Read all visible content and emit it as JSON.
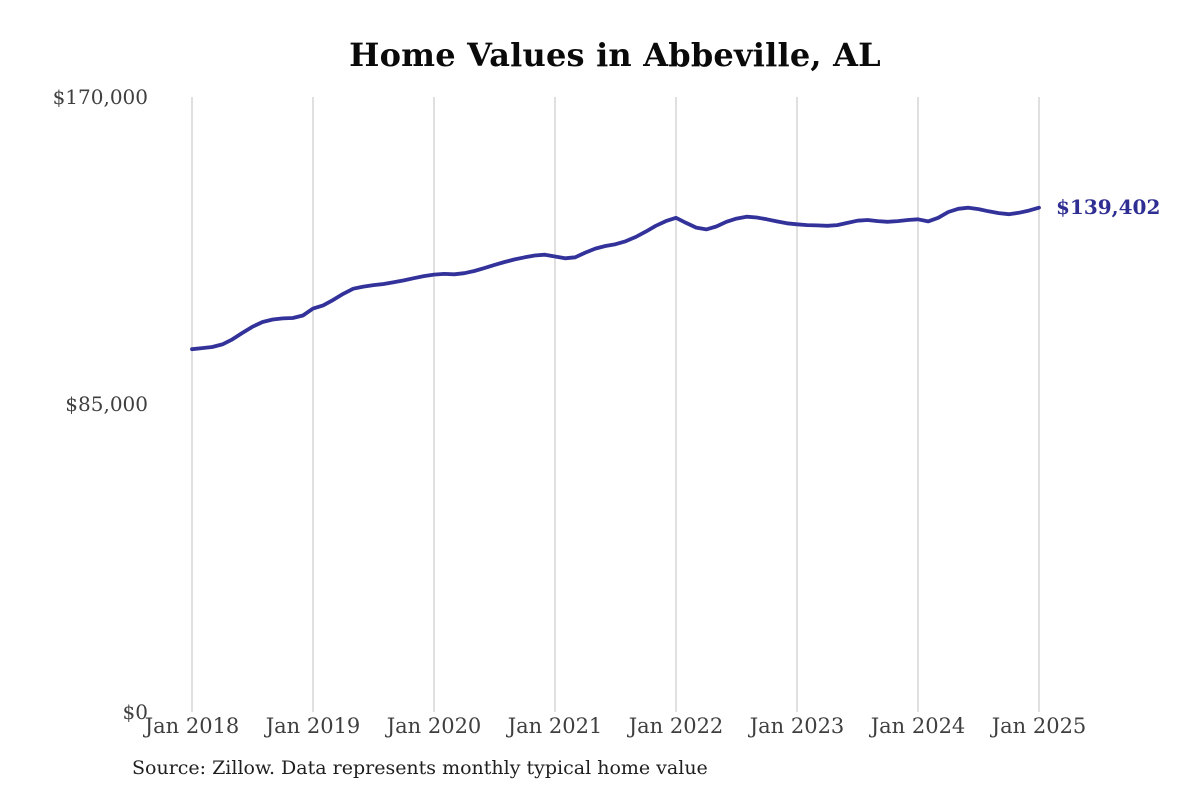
{
  "chart": {
    "source_note": "Source: Zillow. Data represents monthly typical home value"
  },
  "chart_data": {
    "type": "line",
    "title": "Home Values in Abbeville, AL",
    "xlabel": "",
    "ylabel": "",
    "ylim": [
      0,
      170000
    ],
    "grid": "vertical-only",
    "legend": "none",
    "x_interval": "monthly",
    "x_range": [
      "Jan 2018",
      "Jan 2025"
    ],
    "y_ticks": [
      {
        "value": 0,
        "label": "$0"
      },
      {
        "value": 85000,
        "label": "$85,000"
      },
      {
        "value": 170000,
        "label": "$170,000"
      }
    ],
    "x_ticks": [
      "Jan 2018",
      "Jan 2019",
      "Jan 2020",
      "Jan 2021",
      "Jan 2022",
      "Jan 2023",
      "Jan 2024",
      "Jan 2025"
    ],
    "series": [
      {
        "name": "Monthly typical home value",
        "values": [
          100300,
          100600,
          100900,
          101600,
          103000,
          104800,
          106500,
          107800,
          108500,
          108800,
          108900,
          109600,
          111500,
          112400,
          113900,
          115600,
          117000,
          117600,
          118000,
          118300,
          118800,
          119300,
          119900,
          120500,
          120900,
          121100,
          121000,
          121300,
          121900,
          122700,
          123600,
          124400,
          125100,
          125700,
          126200,
          126400,
          125900,
          125400,
          125700,
          127000,
          128100,
          128800,
          129300,
          130100,
          131300,
          132800,
          134400,
          135700,
          136600,
          135200,
          133900,
          133400,
          134200,
          135500,
          136400,
          136900,
          136700,
          136200,
          135600,
          135100,
          134800,
          134600,
          134500,
          134400,
          134600,
          135200,
          135800,
          136000,
          135700,
          135500,
          135700,
          136000,
          136200,
          135600,
          136600,
          138200,
          139100,
          139400,
          139000,
          138400,
          137900,
          137600,
          138000,
          138600,
          139402
        ]
      }
    ],
    "annotations": [
      {
        "text": "$139,402",
        "attach": "last-point",
        "value": 139402
      }
    ],
    "colors": {
      "line": "#32329a",
      "gridline": "#cccccc",
      "end_label": "#2e2e93"
    }
  }
}
